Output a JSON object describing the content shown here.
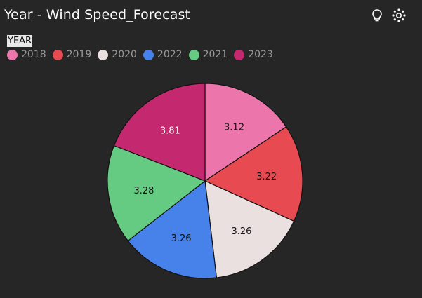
{
  "header": {
    "title": "Year - Wind Speed_Forecast",
    "icons": [
      "lightbulb-icon",
      "settings-icon"
    ]
  },
  "legend": {
    "title": "YEAR",
    "placement": "top-left"
  },
  "chart_data": {
    "type": "pie",
    "title": "Year - Wind Speed_Forecast",
    "legend_title": "YEAR",
    "categories": [
      "2018",
      "2019",
      "2020",
      "2022",
      "2021",
      "2023"
    ],
    "values": [
      3.12,
      3.22,
      3.26,
      3.26,
      3.28,
      3.81
    ],
    "colors": [
      "#ec76ac",
      "#e84a52",
      "#ebe0e0",
      "#4682ea",
      "#66cb82",
      "#c4286e"
    ],
    "label_colors": [
      "#111111",
      "#111111",
      "#111111",
      "#111111",
      "#111111",
      "#ffffff"
    ],
    "legend_placement": "top-left"
  }
}
